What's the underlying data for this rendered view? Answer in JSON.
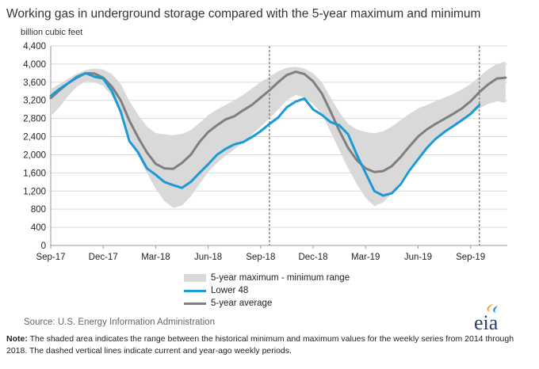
{
  "title": "Working gas in underground  storage compared with the 5-year maximum and minimum",
  "source_text": "Source:  U.S. Energy Information Administration",
  "note_label": "Note:",
  "note_text": " The shaded area indicates the range between the historical minimum and maximum values for the weekly series from 2014 through 2018. The dashed vertical lines indicate current and year-ago weekly periods.",
  "logo_text": "eia",
  "colors": {
    "band": "#d9d9d9",
    "lower48": "#1b9ad6",
    "avg": "#7f7f7f",
    "grid": "#d9d9d9",
    "vline": "#888888",
    "logo_text": "#2a3f6b",
    "logo_accent": "#f5a623"
  },
  "chart_data": {
    "type": "line",
    "title": "Working gas in underground  storage compared with the 5-year maximum and minimum",
    "ylabel": "billion cubic feet",
    "xlabel": "",
    "ylim": [
      0,
      4400
    ],
    "yticks": [
      0,
      400,
      800,
      1200,
      1600,
      2000,
      2400,
      2800,
      3200,
      3600,
      4000,
      4400
    ],
    "ytick_labels": [
      "0",
      "400",
      "800",
      "1,200",
      "1,600",
      "2,000",
      "2,400",
      "2,800",
      "3,200",
      "3,600",
      "4,000",
      "4,400"
    ],
    "x_axis": "months since Sep-17",
    "xlim": [
      0,
      26.1
    ],
    "xticks": [
      0,
      3,
      6,
      9,
      12,
      15,
      18,
      21,
      24
    ],
    "xtick_labels": [
      "Sep-17",
      "Dec-17",
      "Mar-18",
      "Jun-18",
      "Sep-18",
      "Dec-18",
      "Mar-19",
      "Jun-19",
      "Sep-19"
    ],
    "vlines": [
      12.5,
      24.5
    ],
    "grid": true,
    "legend_position": "bottom-center",
    "series": [
      {
        "name": "5-year maximum - minimum range",
        "kind": "band",
        "x": [
          0,
          0.5,
          1,
          1.5,
          2,
          2.5,
          3,
          3.5,
          4,
          4.5,
          5,
          5.5,
          6,
          6.5,
          7,
          7.5,
          8,
          8.5,
          9,
          9.5,
          10,
          10.5,
          11,
          11.5,
          12,
          12.5,
          13,
          13.5,
          14,
          14.5,
          15,
          15.5,
          16,
          16.5,
          17,
          17.5,
          18,
          18.5,
          19,
          19.5,
          20,
          20.5,
          21,
          21.5,
          22,
          22.5,
          23,
          23.5,
          24,
          24.5,
          25,
          25.5,
          26
        ],
        "upper": [
          3450,
          3560,
          3680,
          3790,
          3870,
          3900,
          3880,
          3780,
          3560,
          3180,
          2880,
          2620,
          2480,
          2450,
          2430,
          2460,
          2540,
          2700,
          2870,
          3000,
          3100,
          3200,
          3320,
          3460,
          3600,
          3720,
          3840,
          3920,
          3940,
          3900,
          3800,
          3600,
          3260,
          2940,
          2680,
          2560,
          2500,
          2470,
          2520,
          2620,
          2760,
          2900,
          3020,
          3100,
          3180,
          3260,
          3340,
          3440,
          3560,
          3720,
          3880,
          4000,
          4050
        ],
        "lower": [
          2850,
          3050,
          3300,
          3500,
          3620,
          3600,
          3520,
          3300,
          2900,
          2400,
          1980,
          1600,
          1250,
          980,
          830,
          880,
          1080,
          1350,
          1620,
          1820,
          1980,
          2120,
          2280,
          2450,
          2620,
          2800,
          3000,
          3200,
          3320,
          3260,
          3120,
          2900,
          2500,
          2100,
          1700,
          1350,
          1050,
          870,
          950,
          1150,
          1420,
          1700,
          1950,
          2150,
          2330,
          2480,
          2620,
          2760,
          2900,
          3020,
          3120,
          3180,
          3150
        ]
      },
      {
        "name": "Lower 48",
        "kind": "line",
        "x": [
          0,
          0.5,
          1,
          1.5,
          2,
          2.5,
          3,
          3.5,
          4,
          4.5,
          5,
          5.5,
          6,
          6.5,
          7,
          7.5,
          8,
          8.5,
          9,
          9.5,
          10,
          10.5,
          11,
          11.5,
          12,
          12.5,
          13,
          13.5,
          14,
          14.5,
          15,
          15.5,
          16,
          16.5,
          17,
          17.5,
          18,
          18.5,
          19,
          19.5,
          20,
          20.5,
          21,
          21.5,
          22,
          22.5,
          23,
          23.5,
          24,
          24.5
        ],
        "values": [
          3300,
          3450,
          3580,
          3720,
          3800,
          3720,
          3680,
          3400,
          2950,
          2300,
          2050,
          1700,
          1560,
          1400,
          1330,
          1270,
          1400,
          1600,
          1790,
          2000,
          2130,
          2230,
          2280,
          2390,
          2520,
          2680,
          2820,
          3050,
          3170,
          3240,
          3000,
          2880,
          2720,
          2650,
          2450,
          2000,
          1600,
          1200,
          1100,
          1150,
          1350,
          1650,
          1900,
          2150,
          2350,
          2500,
          2630,
          2760,
          2900,
          3100
        ]
      },
      {
        "name": "5-year average",
        "kind": "line",
        "x": [
          0,
          0.5,
          1,
          1.5,
          2,
          2.5,
          3,
          3.5,
          4,
          4.5,
          5,
          5.5,
          6,
          6.5,
          7,
          7.5,
          8,
          8.5,
          9,
          9.5,
          10,
          10.5,
          11,
          11.5,
          12,
          12.5,
          13,
          13.5,
          14,
          14.5,
          15,
          15.5,
          16,
          16.5,
          17,
          17.5,
          18,
          18.5,
          19,
          19.5,
          20,
          20.5,
          21,
          21.5,
          22,
          22.5,
          23,
          23.5,
          24,
          24.5,
          25,
          25.5,
          26
        ],
        "values": [
          3250,
          3420,
          3580,
          3700,
          3800,
          3790,
          3700,
          3500,
          3200,
          2750,
          2380,
          2050,
          1800,
          1700,
          1690,
          1820,
          2000,
          2280,
          2500,
          2650,
          2780,
          2850,
          2980,
          3100,
          3260,
          3420,
          3600,
          3760,
          3830,
          3780,
          3620,
          3350,
          2950,
          2530,
          2150,
          1880,
          1700,
          1620,
          1640,
          1750,
          1950,
          2180,
          2400,
          2560,
          2680,
          2790,
          2900,
          3020,
          3180,
          3380,
          3550,
          3680,
          3700
        ]
      }
    ]
  }
}
